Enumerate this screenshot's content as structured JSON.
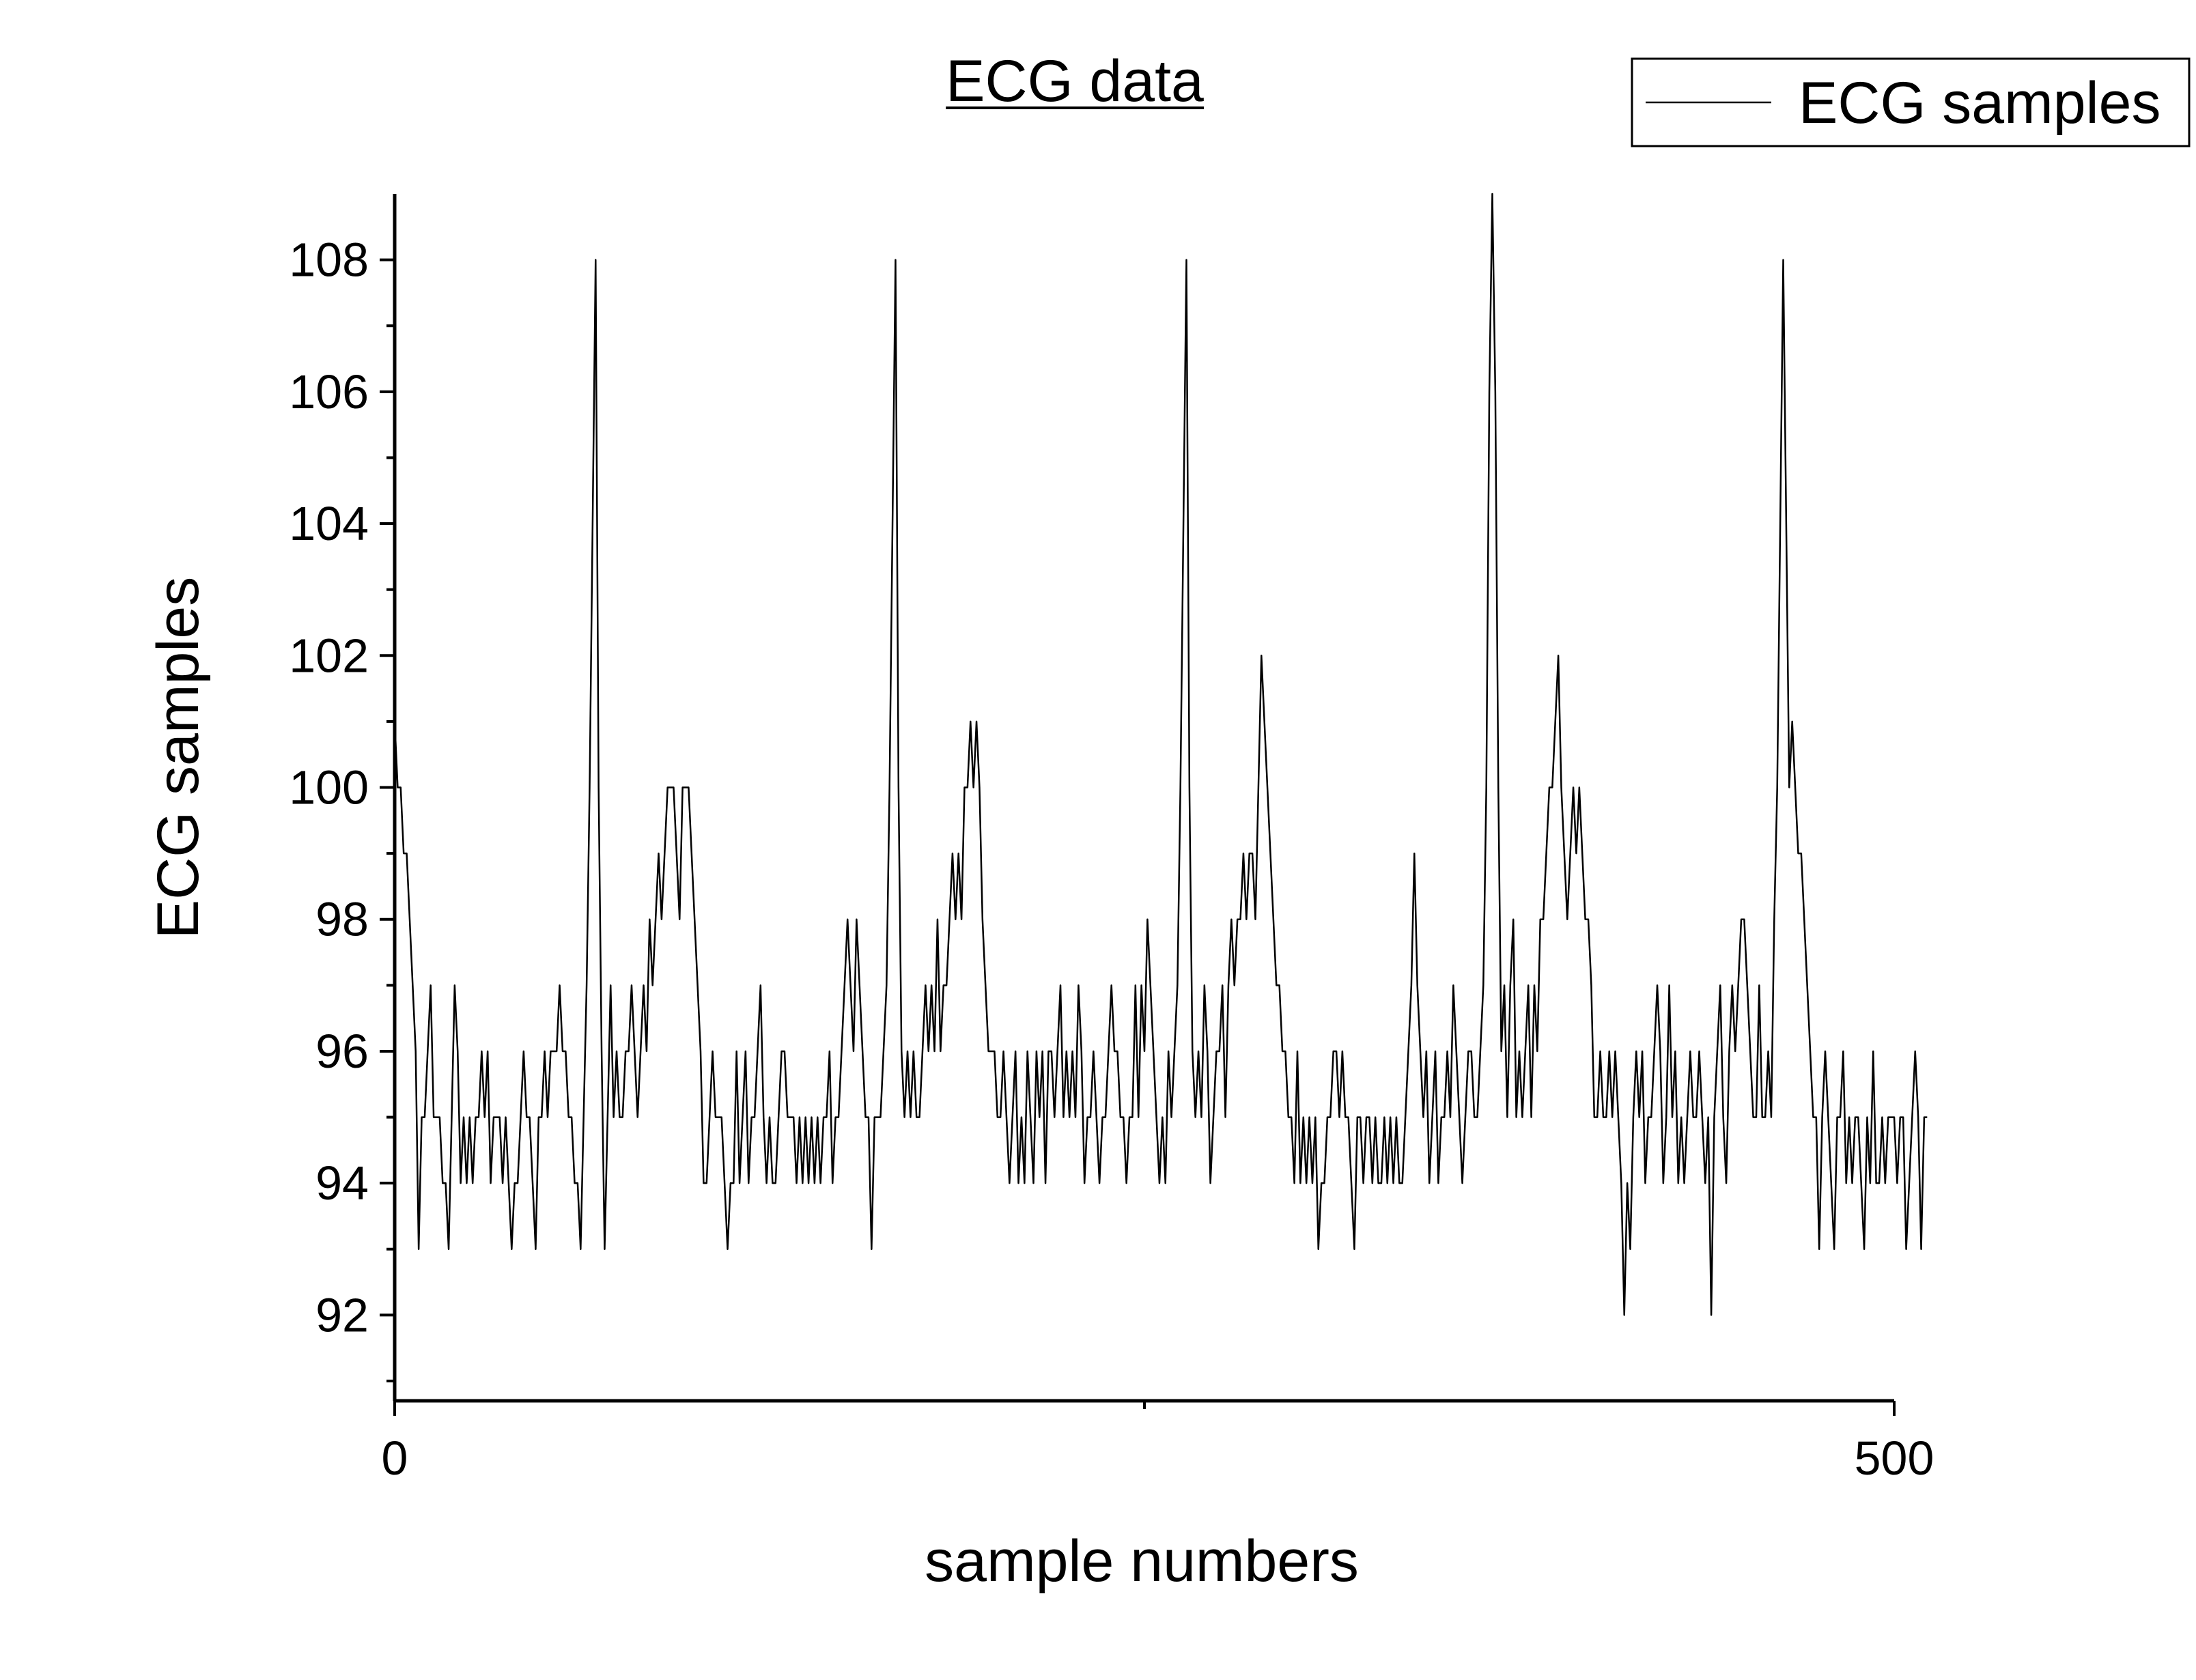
{
  "chart_data": {
    "type": "line",
    "title": "ECG data",
    "xlabel": "sample numbers",
    "ylabel": "ECG samples",
    "xlim": [
      0,
      500
    ],
    "ylim": [
      90.7,
      109
    ],
    "x_ticks": [
      0,
      500
    ],
    "x_minor_ticks": [
      250
    ],
    "y_ticks": [
      92,
      94,
      96,
      98,
      100,
      102,
      104,
      106,
      108
    ],
    "y_minor_ticks": [
      91,
      93,
      95,
      97,
      99,
      101,
      103,
      105,
      107
    ],
    "x_tick_labels": [
      "0",
      "500"
    ],
    "y_tick_labels": [
      "92",
      "94",
      "96",
      "98",
      "100",
      "102",
      "104",
      "106",
      "108"
    ],
    "legend": {
      "position": "top-right",
      "entries": [
        "ECG samples"
      ]
    },
    "grid": false,
    "line_color": "#000000",
    "series": [
      {
        "name": "ECG samples",
        "x_start": 0,
        "x_step": 1,
        "values": [
          101,
          100,
          100,
          99,
          99,
          98,
          97,
          96,
          93,
          95,
          95,
          96,
          97,
          95,
          95,
          95,
          94,
          94,
          93,
          95,
          97,
          96,
          94,
          95,
          94,
          95,
          94,
          95,
          95,
          96,
          95,
          96,
          94,
          95,
          95,
          95,
          94,
          95,
          94,
          93,
          94,
          94,
          95,
          96,
          95,
          95,
          94,
          93,
          95,
          95,
          96,
          95,
          96,
          96,
          96,
          97,
          96,
          96,
          95,
          95,
          94,
          94,
          93,
          95,
          97,
          100,
          104,
          108,
          100,
          96,
          93,
          95,
          97,
          95,
          96,
          95,
          95,
          96,
          96,
          97,
          96,
          95,
          96,
          97,
          96,
          98,
          97,
          98,
          99,
          98,
          99,
          100,
          100,
          100,
          99,
          98,
          100,
          100,
          100,
          99,
          98,
          97,
          96,
          94,
          94,
          95,
          96,
          95,
          95,
          95,
          94,
          93,
          94,
          94,
          96,
          94,
          95,
          96,
          94,
          95,
          95,
          96,
          97,
          95,
          94,
          95,
          94,
          94,
          95,
          96,
          96,
          95,
          95,
          95,
          94,
          95,
          94,
          95,
          94,
          95,
          94,
          95,
          94,
          95,
          95,
          96,
          94,
          95,
          95,
          96,
          97,
          98,
          97,
          96,
          98,
          97,
          96,
          95,
          95,
          93,
          95,
          95,
          95,
          96,
          97,
          100,
          104,
          108,
          100,
          96,
          95,
          96,
          95,
          96,
          95,
          95,
          96,
          97,
          96,
          97,
          96,
          98,
          96,
          97,
          97,
          98,
          99,
          98,
          99,
          98,
          100,
          100,
          101,
          100,
          101,
          100,
          98,
          97,
          96,
          96,
          96,
          95,
          95,
          96,
          95,
          94,
          95,
          96,
          94,
          95,
          94,
          96,
          95,
          94,
          96,
          95,
          96,
          94,
          96,
          96,
          95,
          96,
          97,
          95,
          96,
          95,
          96,
          95,
          97,
          96,
          94,
          95,
          95,
          96,
          95,
          94,
          95,
          95,
          96,
          97,
          96,
          96,
          95,
          95,
          94,
          95,
          95,
          97,
          95,
          97,
          96,
          98,
          97,
          96,
          95,
          94,
          95,
          94,
          96,
          95,
          96,
          97,
          100,
          104,
          108,
          100,
          96,
          95,
          96,
          95,
          97,
          96,
          94,
          95,
          96,
          96,
          97,
          95,
          97,
          98,
          97,
          98,
          98,
          99,
          98,
          99,
          99,
          98,
          100,
          102,
          101,
          100,
          99,
          98,
          97,
          97,
          96,
          96,
          95,
          95,
          94,
          96,
          94,
          95,
          94,
          95,
          94,
          95,
          93,
          94,
          94,
          95,
          95,
          96,
          96,
          95,
          96,
          95,
          95,
          94,
          93,
          95,
          95,
          94,
          95,
          95,
          94,
          95,
          94,
          94,
          95,
          94,
          95,
          94,
          95,
          94,
          94,
          95,
          96,
          97,
          99,
          97,
          96,
          95,
          96,
          94,
          95,
          96,
          94,
          95,
          95,
          96,
          95,
          97,
          96,
          95,
          94,
          95,
          96,
          96,
          95,
          95,
          96,
          97,
          100,
          106,
          109,
          106,
          100,
          96,
          97,
          95,
          97,
          98,
          95,
          96,
          95,
          96,
          97,
          95,
          97,
          96,
          98,
          98,
          99,
          100,
          100,
          101,
          102,
          100,
          99,
          98,
          99,
          100,
          99,
          100,
          99,
          98,
          98,
          97,
          95,
          95,
          96,
          95,
          95,
          96,
          95,
          96,
          95,
          94,
          92,
          94,
          93,
          95,
          96,
          95,
          96,
          94,
          95,
          95,
          96,
          97,
          96,
          94,
          95,
          97,
          95,
          96,
          94,
          95,
          94,
          95,
          96,
          95,
          95,
          96,
          95,
          94,
          95,
          92,
          95,
          96,
          97,
          95,
          94,
          96,
          97,
          96,
          97,
          98,
          98,
          97,
          96,
          95,
          95,
          97,
          95,
          95,
          96,
          95,
          98,
          100,
          104,
          108,
          104,
          100,
          101,
          100,
          99,
          99,
          98,
          97,
          96,
          95,
          95,
          93,
          95,
          96,
          95,
          94,
          93,
          95,
          95,
          96,
          94,
          95,
          94,
          95,
          95,
          94,
          93,
          95,
          94,
          96,
          94,
          94,
          95,
          94,
          95,
          95,
          95,
          94,
          95,
          95,
          93,
          94,
          95,
          96,
          95,
          93,
          95,
          95
        ]
      }
    ]
  }
}
